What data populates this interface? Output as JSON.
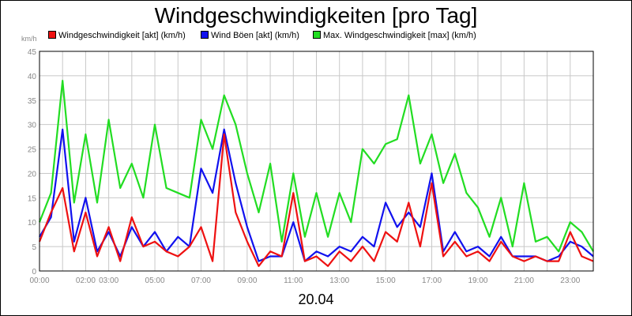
{
  "chart_data": {
    "type": "line",
    "title": "Windgeschwindigkeiten [pro Tag]",
    "ylabel": "km/h",
    "xlabel": "20.04",
    "ylim": [
      0,
      45
    ],
    "xlim": [
      0,
      24
    ],
    "y_ticks": [
      "0",
      "5",
      "10",
      "15",
      "20",
      "25",
      "30",
      "35",
      "40",
      "45"
    ],
    "x_ticks": [
      {
        "hour": 0,
        "label": "00:00"
      },
      {
        "hour": 2,
        "label": "02:00"
      },
      {
        "hour": 3,
        "label": "03:00"
      },
      {
        "hour": 5,
        "label": "05:00"
      },
      {
        "hour": 7,
        "label": "07:00"
      },
      {
        "hour": 9,
        "label": "09:00"
      },
      {
        "hour": 11,
        "label": "11:00"
      },
      {
        "hour": 13,
        "label": "13:00"
      },
      {
        "hour": 15,
        "label": "15:00"
      },
      {
        "hour": 17,
        "label": "17:00"
      },
      {
        "hour": 19,
        "label": "19:00"
      },
      {
        "hour": 21,
        "label": "21:00"
      },
      {
        "hour": 23,
        "label": "23:00"
      }
    ],
    "grid": true,
    "legend_position": "top-left",
    "x": [
      0,
      0.5,
      1,
      1.5,
      2,
      2.5,
      3,
      3.5,
      4,
      4.5,
      5,
      5.5,
      6,
      6.5,
      7,
      7.5,
      8,
      8.5,
      9,
      9.5,
      10,
      10.5,
      11,
      11.5,
      12,
      12.5,
      13,
      13.5,
      14,
      14.5,
      15,
      15.5,
      16,
      16.5,
      17,
      17.5,
      18,
      18.5,
      19,
      19.5,
      20,
      20.5,
      21,
      21.5,
      22,
      22.5,
      23,
      23.5,
      24
    ],
    "series": [
      {
        "name": "Windgeschwindigkeit [akt] (km/h)",
        "color": "#ee1111",
        "values": [
          6,
          12,
          17,
          4,
          12,
          3,
          9,
          2,
          11,
          5,
          6,
          4,
          3,
          5,
          9,
          2,
          28,
          12,
          6,
          1,
          4,
          3,
          16,
          2,
          3,
          1,
          4,
          2,
          5,
          2,
          8,
          6,
          14,
          5,
          18,
          3,
          6,
          3,
          4,
          2,
          6,
          3,
          2,
          3,
          2,
          2,
          8,
          3,
          2
        ]
      },
      {
        "name": "Wind Böen [akt] (km/h)",
        "color": "#1111ee",
        "values": [
          7,
          11,
          29,
          6,
          15,
          4,
          8,
          3,
          9,
          5,
          8,
          4,
          7,
          5,
          21,
          16,
          29,
          18,
          9,
          2,
          3,
          3,
          10,
          2,
          4,
          3,
          5,
          4,
          7,
          5,
          14,
          9,
          12,
          9,
          20,
          4,
          8,
          4,
          5,
          3,
          7,
          3,
          3,
          3,
          2,
          3,
          6,
          5,
          3
        ]
      },
      {
        "name": "Max. Windgeschwindigkeit [max] (km/h)",
        "color": "#22dd22",
        "values": [
          10,
          16,
          39,
          14,
          28,
          14,
          31,
          17,
          22,
          15,
          30,
          17,
          16,
          15,
          31,
          25,
          36,
          30,
          20,
          12,
          22,
          6,
          20,
          7,
          16,
          7,
          16,
          10,
          25,
          22,
          26,
          27,
          36,
          22,
          28,
          18,
          24,
          16,
          13,
          7,
          15,
          5,
          18,
          6,
          7,
          4,
          10,
          8,
          4
        ]
      }
    ]
  }
}
